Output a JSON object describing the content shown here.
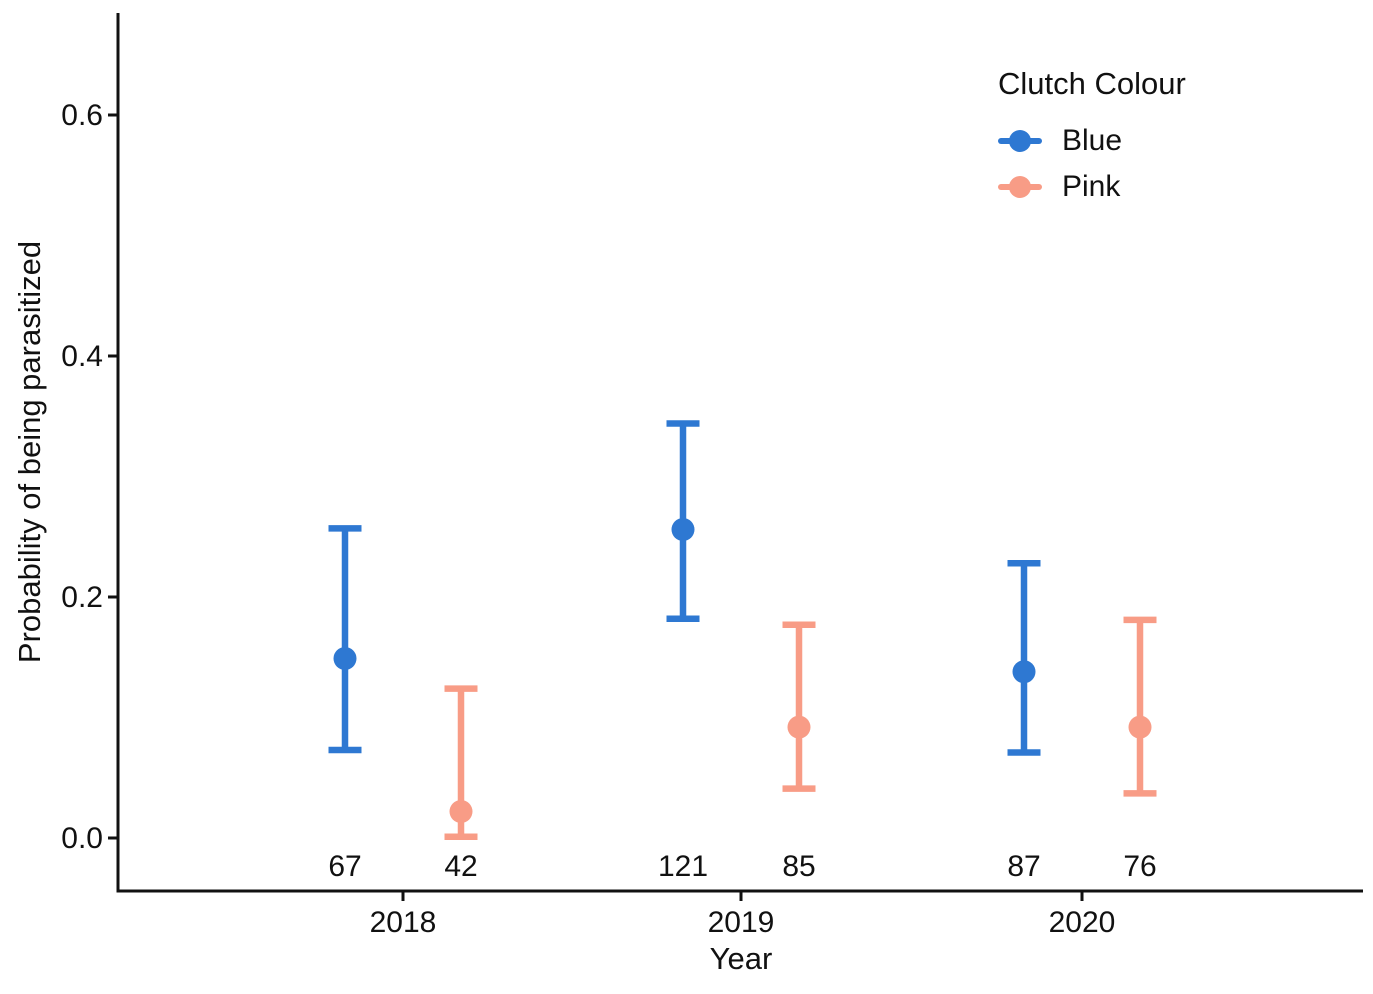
{
  "figure": {
    "background": "#FFFFFF"
  },
  "chart_data": {
    "type": "pointrange",
    "title": "",
    "xlabel": "Year",
    "ylabel": "Probability of being parasitized",
    "categories": [
      "2018",
      "2019",
      "2020"
    ],
    "ytick_values": [
      0.0,
      0.2,
      0.4,
      0.6
    ],
    "ytick_labels": [
      "0.0",
      "0.2",
      "0.4",
      "0.6"
    ],
    "ylim": [
      -0.044,
      0.685
    ],
    "grid": "off",
    "legend": {
      "title": "Clutch Colour",
      "position": "top-right",
      "entries": [
        "Blue",
        "Pink"
      ]
    },
    "series": [
      {
        "name": "Blue",
        "color": "#2E78D2",
        "points": [
          {
            "year": "2018",
            "estimate": 0.149,
            "lower": 0.073,
            "upper": 0.257,
            "n": 67
          },
          {
            "year": "2019",
            "estimate": 0.256,
            "lower": 0.182,
            "upper": 0.344,
            "n": 121
          },
          {
            "year": "2020",
            "estimate": 0.138,
            "lower": 0.071,
            "upper": 0.228,
            "n": 87
          }
        ]
      },
      {
        "name": "Pink",
        "color": "#F89C86",
        "points": [
          {
            "year": "2018",
            "estimate": 0.022,
            "lower": 0.001,
            "upper": 0.124,
            "n": 42
          },
          {
            "year": "2019",
            "estimate": 0.092,
            "lower": 0.041,
            "upper": 0.177,
            "n": 85
          },
          {
            "year": "2020",
            "estimate": 0.092,
            "lower": 0.037,
            "upper": 0.181,
            "n": 76
          }
        ]
      }
    ],
    "sample_size_labels": [
      "67",
      "42",
      "121",
      "85",
      "87",
      "76"
    ],
    "colors": {
      "axis": "#111111",
      "text": "#111111"
    }
  }
}
